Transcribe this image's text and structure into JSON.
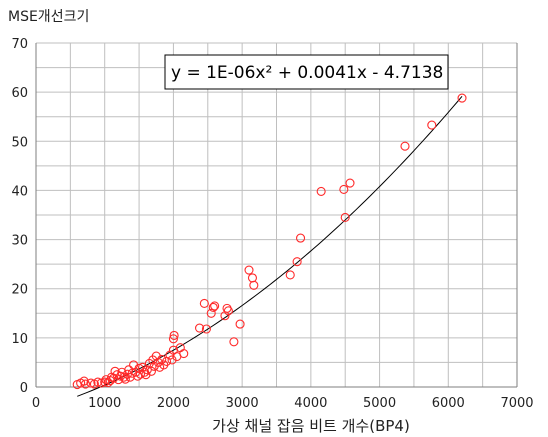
{
  "chart_data": {
    "type": "scatter",
    "title": "",
    "ylabel": "MSE개선크기",
    "xlabel": "가상 채널 잡음 비트 개수(BP4)",
    "xlim": [
      0,
      7000
    ],
    "ylim": [
      0,
      70
    ],
    "x_ticks": [
      "0",
      "1000",
      "2000",
      "3000",
      "4000",
      "5000",
      "6000",
      "7000"
    ],
    "y_ticks": [
      "0",
      "10",
      "20",
      "30",
      "40",
      "50",
      "60",
      "70"
    ],
    "grid": true,
    "marker": "open-circle",
    "marker_color": "#ff2a2a",
    "points": [
      {
        "x": 600,
        "y": 0.5
      },
      {
        "x": 650,
        "y": 0.8
      },
      {
        "x": 700,
        "y": 1.2
      },
      {
        "x": 720,
        "y": 0.6
      },
      {
        "x": 800,
        "y": 0.8
      },
      {
        "x": 850,
        "y": 0.6
      },
      {
        "x": 900,
        "y": 1.0
      },
      {
        "x": 950,
        "y": 0.8
      },
      {
        "x": 1000,
        "y": 1.0
      },
      {
        "x": 1020,
        "y": 1.5
      },
      {
        "x": 1050,
        "y": 0.9
      },
      {
        "x": 1080,
        "y": 1.3
      },
      {
        "x": 1100,
        "y": 2.0
      },
      {
        "x": 1130,
        "y": 1.8
      },
      {
        "x": 1150,
        "y": 3.2
      },
      {
        "x": 1180,
        "y": 2.5
      },
      {
        "x": 1200,
        "y": 1.5
      },
      {
        "x": 1230,
        "y": 2.2
      },
      {
        "x": 1250,
        "y": 3.0
      },
      {
        "x": 1280,
        "y": 2.0
      },
      {
        "x": 1300,
        "y": 1.6
      },
      {
        "x": 1330,
        "y": 2.6
      },
      {
        "x": 1350,
        "y": 3.5
      },
      {
        "x": 1370,
        "y": 2.0
      },
      {
        "x": 1400,
        "y": 2.8
      },
      {
        "x": 1420,
        "y": 4.5
      },
      {
        "x": 1450,
        "y": 3.0
      },
      {
        "x": 1480,
        "y": 2.2
      },
      {
        "x": 1500,
        "y": 3.8
      },
      {
        "x": 1520,
        "y": 2.6
      },
      {
        "x": 1550,
        "y": 4.0
      },
      {
        "x": 1580,
        "y": 3.0
      },
      {
        "x": 1600,
        "y": 2.5
      },
      {
        "x": 1620,
        "y": 3.5
      },
      {
        "x": 1650,
        "y": 4.8
      },
      {
        "x": 1680,
        "y": 3.2
      },
      {
        "x": 1700,
        "y": 5.5
      },
      {
        "x": 1720,
        "y": 4.2
      },
      {
        "x": 1750,
        "y": 6.3
      },
      {
        "x": 1780,
        "y": 5.0
      },
      {
        "x": 1800,
        "y": 4.0
      },
      {
        "x": 1830,
        "y": 5.6
      },
      {
        "x": 1860,
        "y": 4.5
      },
      {
        "x": 1900,
        "y": 5.2
      },
      {
        "x": 1950,
        "y": 6.5
      },
      {
        "x": 1980,
        "y": 5.5
      },
      {
        "x": 2000,
        "y": 7.5
      },
      {
        "x": 2000,
        "y": 9.8
      },
      {
        "x": 2010,
        "y": 10.5
      },
      {
        "x": 2050,
        "y": 6.2
      },
      {
        "x": 2100,
        "y": 8.0
      },
      {
        "x": 2150,
        "y": 6.8
      },
      {
        "x": 2380,
        "y": 12.0
      },
      {
        "x": 2450,
        "y": 17.0
      },
      {
        "x": 2480,
        "y": 11.8
      },
      {
        "x": 2550,
        "y": 15.0
      },
      {
        "x": 2580,
        "y": 16.2
      },
      {
        "x": 2600,
        "y": 16.5
      },
      {
        "x": 2750,
        "y": 14.5
      },
      {
        "x": 2780,
        "y": 16.0
      },
      {
        "x": 2800,
        "y": 15.5
      },
      {
        "x": 2880,
        "y": 9.2
      },
      {
        "x": 2970,
        "y": 12.8
      },
      {
        "x": 3100,
        "y": 23.8
      },
      {
        "x": 3150,
        "y": 22.2
      },
      {
        "x": 3170,
        "y": 20.7
      },
      {
        "x": 3700,
        "y": 22.8
      },
      {
        "x": 3800,
        "y": 25.5
      },
      {
        "x": 3850,
        "y": 30.3
      },
      {
        "x": 4150,
        "y": 39.8
      },
      {
        "x": 4480,
        "y": 40.2
      },
      {
        "x": 4500,
        "y": 34.5
      },
      {
        "x": 4570,
        "y": 41.5
      },
      {
        "x": 5370,
        "y": 49.0
      },
      {
        "x": 5760,
        "y": 53.3
      },
      {
        "x": 6200,
        "y": 58.8
      }
    ],
    "trendline": {
      "equation": "y = 1E-06x² + 0.0041x - 4.7138",
      "a": 1e-06,
      "b": 0.0041,
      "c": -4.7138,
      "x_range": [
        600,
        6200
      ]
    }
  }
}
